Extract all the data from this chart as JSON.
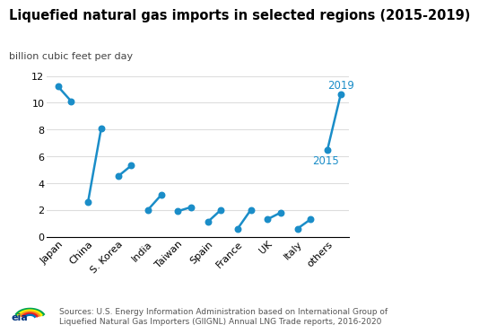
{
  "title": "Liquefied natural gas imports in selected regions (2015-2019)",
  "ylabel": "billion cubic feet per day",
  "categories": [
    "Japan",
    "China",
    "S. Korea",
    "India",
    "Taiwan",
    "Spain",
    "France",
    "UK",
    "Italy",
    "others"
  ],
  "values_2015": [
    11.2,
    2.6,
    4.5,
    2.0,
    1.9,
    1.1,
    0.6,
    1.3,
    0.6,
    6.5
  ],
  "values_2019": [
    10.1,
    8.1,
    5.3,
    3.1,
    2.2,
    2.0,
    2.0,
    1.8,
    1.3,
    10.6
  ],
  "line_color": "#1A8DC8",
  "dot_color": "#1A8DC8",
  "ylim": [
    0,
    12
  ],
  "yticks": [
    0,
    2,
    4,
    6,
    8,
    10,
    12
  ],
  "label_2015": "2015",
  "label_2019": "2019",
  "label_color": "#1A8DC8",
  "source_text": "Sources: U.S. Energy Information Administration based on International Group of\nLiquefied Natural Gas Importers (GIIGNL) Annual LNG Trade reports, 2016-2020",
  "bg_color": "#FFFFFF",
  "grid_color": "#DDDDDD",
  "title_fontsize": 10.5,
  "ylabel_fontsize": 8,
  "tick_fontsize": 8,
  "annot_fontsize": 8.5,
  "source_fontsize": 6.5
}
